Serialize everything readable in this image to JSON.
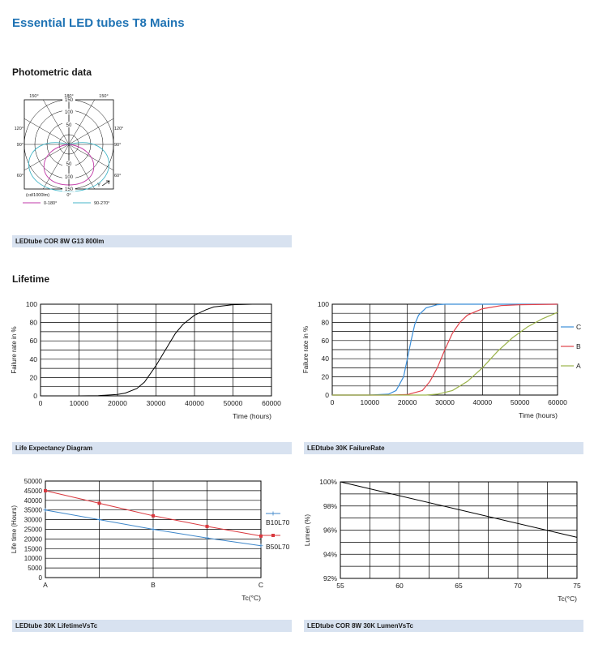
{
  "document": {
    "title": "Essential LED tubes T8 Mains"
  },
  "sections": {
    "photometric": "Photometric data",
    "lifetime": "Lifetime"
  },
  "captions": {
    "photometric": "LEDtube COR 8W G13 800lm",
    "life_expectancy": "Life Expectancy Diagram",
    "failure_rate": "LEDtube 30K FailureRate",
    "lifetime_vs_tc": "LEDtube 30K LifetimeVsTc",
    "lumen_vs_tc": "LEDtube COR 8W 30K LumenVsTc"
  },
  "colors": {
    "accent": "#1f73b4",
    "caption_bg": "#d8e2f0",
    "series_a": "#9bb34a",
    "series_b": "#e0424a",
    "series_c": "#3b8ed8",
    "polar_0_180": "#c23aa8",
    "polar_90_270": "#45b6c8",
    "b10l70": "#3d86c9",
    "b50l70": "#d9383e"
  },
  "chart_data": [
    {
      "id": "polar",
      "type": "polar",
      "angle_labels": {
        "top_left": "150°",
        "top": "180°",
        "top_right": "150°",
        "upper_left": "120°",
        "upper_right": "120°",
        "left": "90°",
        "right": "90°",
        "lower_left": "60°",
        "lower_right": "60°",
        "bottom": "0°"
      },
      "radial_ticks": [
        "150",
        "100",
        "50",
        "50",
        "100",
        "150"
      ],
      "unit_label": "(cd/1000lm)",
      "axis_mark": "Y",
      "series": [
        {
          "name": "0-180°",
          "shape": "downward lobe, max ≈ 115 cd/1000lm at 0°"
        },
        {
          "name": "90-270°",
          "shape": "wide downward lobe, ≈ 140 cd/1000lm at 0°, ≈ 75 at 90°"
        }
      ]
    },
    {
      "id": "life_expectancy",
      "type": "line",
      "ylabel": "Failure rate in %",
      "xlabel": "Time (hours)",
      "xlim": [
        0,
        60000
      ],
      "ylim": [
        0,
        100
      ],
      "xticks": [
        "0",
        "10000",
        "20000",
        "30000",
        "40000",
        "50000",
        "60000"
      ],
      "yticks": [
        "0",
        "20",
        "40",
        "60",
        "80",
        "100"
      ],
      "series": [
        {
          "x": [
            0,
            10000,
            15000,
            20000,
            22000,
            25000,
            27000,
            30000,
            32000,
            35000,
            37000,
            40000,
            43000,
            45000,
            50000,
            55000,
            60000
          ],
          "y": [
            0,
            0,
            0.3,
            1.5,
            3,
            8,
            15,
            33,
            47,
            68,
            78,
            88,
            94,
            97,
            99.5,
            100,
            100
          ]
        }
      ]
    },
    {
      "id": "failure_rate",
      "type": "line",
      "ylabel": "Failure rate in %",
      "xlabel": "Time (hours)",
      "xlim": [
        0,
        60000
      ],
      "ylim": [
        0,
        100
      ],
      "xticks": [
        "0",
        "10000",
        "20000",
        "30000",
        "40000",
        "50000",
        "60000"
      ],
      "yticks": [
        "0",
        "20",
        "40",
        "60",
        "80",
        "100"
      ],
      "series": [
        {
          "name": "C",
          "x": [
            0,
            10000,
            15000,
            17000,
            19000,
            20000,
            21000,
            22000,
            23000,
            25000,
            28000,
            30000,
            60000
          ],
          "y": [
            0,
            0,
            1,
            5,
            20,
            40,
            60,
            78,
            88,
            96,
            99.5,
            100,
            100
          ]
        },
        {
          "name": "B",
          "x": [
            0,
            15000,
            20000,
            24000,
            26000,
            28000,
            30000,
            32000,
            34000,
            36000,
            40000,
            45000,
            50000,
            60000
          ],
          "y": [
            0,
            0,
            0.5,
            5,
            15,
            30,
            50,
            68,
            80,
            88,
            95,
            98.5,
            99.5,
            100
          ]
        },
        {
          "name": "A",
          "x": [
            0,
            25000,
            28000,
            32000,
            36000,
            40000,
            44000,
            48000,
            52000,
            56000,
            60000
          ],
          "y": [
            0,
            0,
            1,
            5,
            15,
            30,
            48,
            63,
            75,
            84,
            91
          ]
        }
      ]
    },
    {
      "id": "lifetime_vs_tc",
      "type": "line",
      "ylabel": "Life time (Hours)",
      "xlabel": "Tc(°C)",
      "categories": [
        "A",
        "B",
        "C"
      ],
      "ylim": [
        0,
        50000
      ],
      "yticks": [
        "0",
        "5000",
        "10000",
        "15000",
        "20000",
        "25000",
        "30000",
        "35000",
        "40000",
        "45000",
        "50000"
      ],
      "series": [
        {
          "name": "B10L70",
          "x": [
            0,
            0.5,
            1,
            1.5,
            2
          ],
          "y": [
            35000,
            30000,
            25000,
            20500,
            16500
          ]
        },
        {
          "name": "B50L70",
          "x": [
            0,
            0.5,
            1,
            1.5,
            2
          ],
          "y": [
            45000,
            38500,
            32000,
            26500,
            21500
          ]
        }
      ]
    },
    {
      "id": "lumen_vs_tc",
      "type": "line",
      "ylabel": "Lumen (%)",
      "xlabel": "Tc(°C)",
      "xlim": [
        55,
        75
      ],
      "ylim": [
        92,
        100
      ],
      "xticks": [
        "55",
        "60",
        "65",
        "70",
        "75"
      ],
      "yticks": [
        "92%",
        "94%",
        "96%",
        "98%",
        "100%"
      ],
      "series": [
        {
          "x": [
            55,
            75
          ],
          "y": [
            100,
            95.4
          ]
        }
      ]
    }
  ]
}
